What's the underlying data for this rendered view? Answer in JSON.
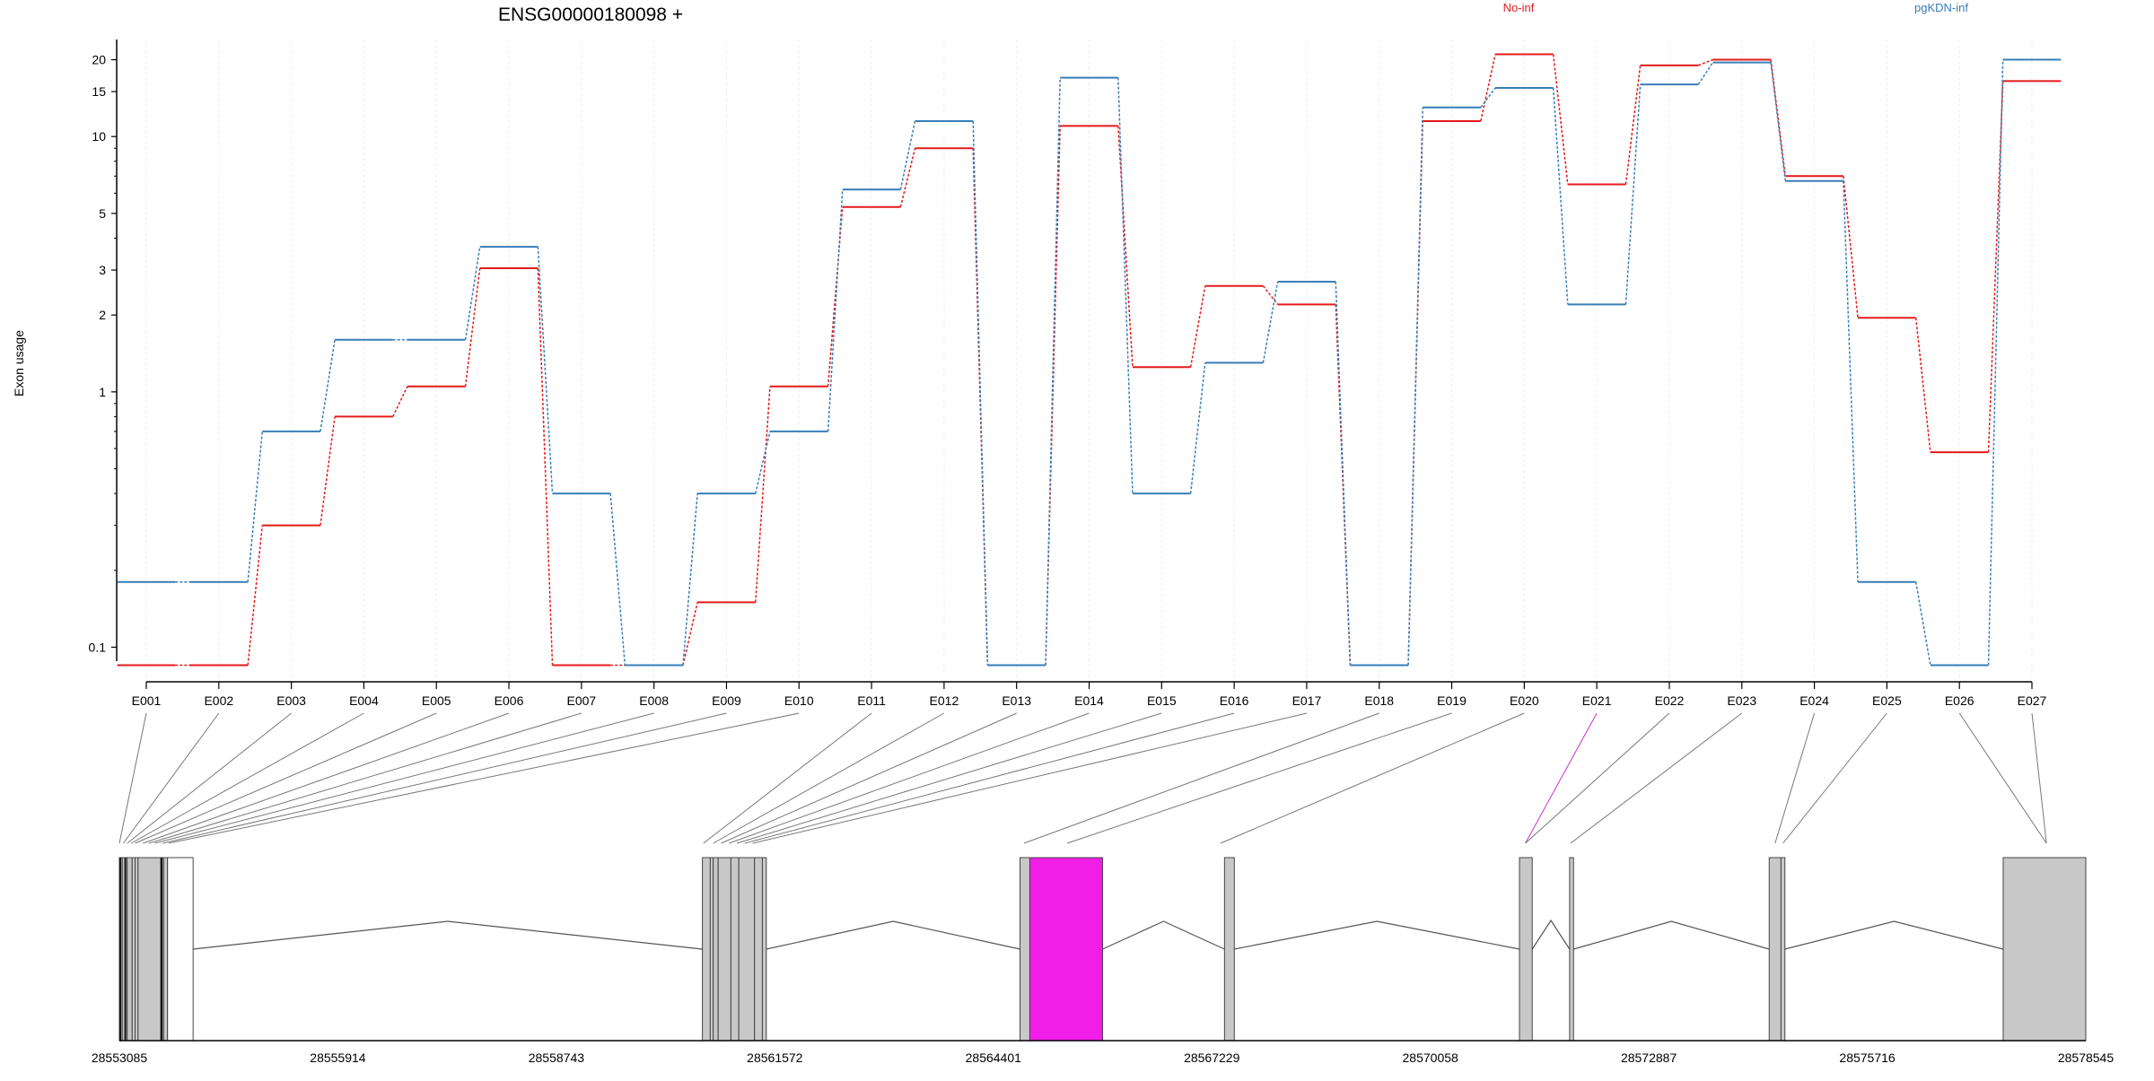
{
  "chart_data": {
    "type": "line",
    "title": "ENSG00000180098 +",
    "ylabel": "Exon usage",
    "xlabel": "",
    "y_scale": "log",
    "ylim": [
      0.075,
      24
    ],
    "y_ticks": [
      0.1,
      1,
      2,
      3,
      5,
      10,
      15,
      20
    ],
    "y_tick_labels": [
      "0.1",
      "1",
      "2",
      "3",
      "5",
      "10",
      "15",
      "20"
    ],
    "categories": [
      "E001",
      "E002",
      "E003",
      "E004",
      "E005",
      "E006",
      "E007",
      "E008",
      "E009",
      "E010",
      "E011",
      "E012",
      "E013",
      "E014",
      "E015",
      "E016",
      "E017",
      "E018",
      "E019",
      "E020",
      "E021",
      "E022",
      "E023",
      "E024",
      "E025",
      "E026",
      "E027"
    ],
    "legend_placement": "top",
    "grid": true,
    "series": [
      {
        "name": "No-inf",
        "color": "#e41a1c",
        "values": [
          0.085,
          0.085,
          0.3,
          0.8,
          1.05,
          3.05,
          0.085,
          0.085,
          0.15,
          1.05,
          5.3,
          9.0,
          0.085,
          11.0,
          1.25,
          2.6,
          2.2,
          0.085,
          11.5,
          21.0,
          6.5,
          19.0,
          20.0,
          7.0,
          1.95,
          0.58,
          16.5
        ]
      },
      {
        "name": "pgKDN-inf",
        "color": "#377eb8",
        "values": [
          0.18,
          0.18,
          0.7,
          1.6,
          1.6,
          3.7,
          0.4,
          0.085,
          0.4,
          0.7,
          6.2,
          11.5,
          0.085,
          17.0,
          0.4,
          1.3,
          2.7,
          0.085,
          13.0,
          15.5,
          2.2,
          16.0,
          19.5,
          6.7,
          0.18,
          0.085,
          20.0
        ]
      }
    ],
    "gene_model": {
      "coordinate_ticks": [
        "28553085",
        "28555914",
        "28558743",
        "28561572",
        "28564401",
        "28567229",
        "28570058",
        "28572887",
        "28575716",
        "28578545"
      ],
      "highlight_exon": "E021",
      "highlight_color": "#f01ee6",
      "exon_color": "#c8c8c8"
    }
  }
}
